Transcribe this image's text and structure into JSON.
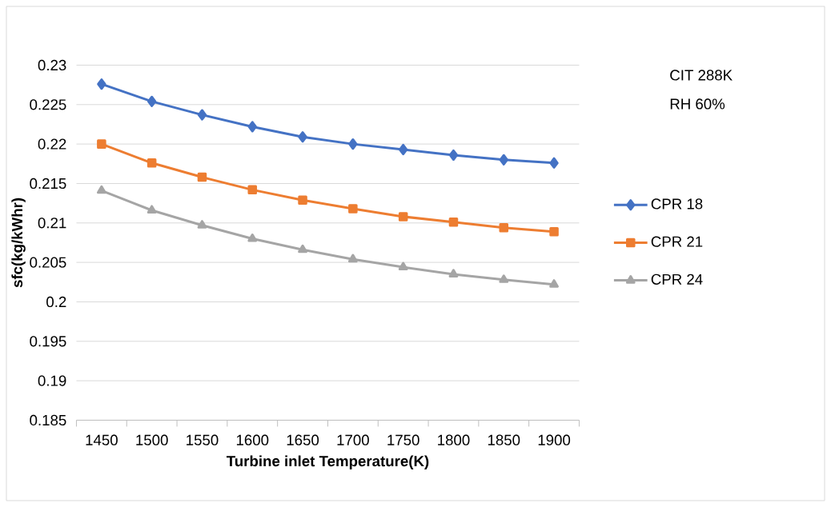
{
  "chart_data": {
    "type": "line",
    "xlabel": "Turbine inlet Temperature(K)",
    "ylabel": "sfc(kg/kWhr)",
    "categories": [
      "1450",
      "1500",
      "1550",
      "1600",
      "1650",
      "1700",
      "1750",
      "1800",
      "1850",
      "1900"
    ],
    "series": [
      {
        "name": "CPR 18",
        "color": "#4472c4",
        "marker": "diamond",
        "values": [
          0.2276,
          0.2254,
          0.2237,
          0.2222,
          0.2209,
          0.22,
          0.2193,
          0.2186,
          0.218,
          0.2176
        ]
      },
      {
        "name": "CPR 21",
        "color": "#ed7d31",
        "marker": "square",
        "values": [
          0.22,
          0.2176,
          0.2158,
          0.2142,
          0.2129,
          0.2118,
          0.2108,
          0.2101,
          0.2094,
          0.2089
        ]
      },
      {
        "name": "CPR 24",
        "color": "#a5a5a5",
        "marker": "triangle",
        "values": [
          0.2141,
          0.2116,
          0.2097,
          0.208,
          0.2066,
          0.2054,
          0.2044,
          0.2035,
          0.2028,
          0.2022
        ]
      }
    ],
    "ylim": [
      0.185,
      0.23
    ],
    "yticks": [
      0.185,
      0.19,
      0.195,
      0.2,
      0.205,
      0.21,
      0.215,
      0.22,
      0.225,
      0.23
    ],
    "grid": "y",
    "legend": "right",
    "line_style": "solid",
    "annotations": [
      "CIT 288K",
      "RH 60%"
    ]
  }
}
